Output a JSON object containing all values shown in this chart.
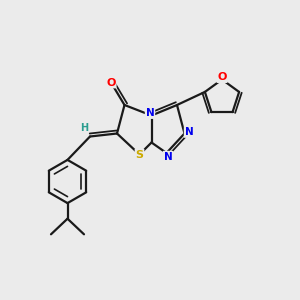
{
  "bg_color": "#ebebeb",
  "bond_color": "#1a1a1a",
  "atom_colors": {
    "O": "#ff0000",
    "N": "#0000ee",
    "S": "#ccaa00",
    "C": "#1a1a1a",
    "H": "#2a9d8f"
  },
  "lw": 1.6
}
